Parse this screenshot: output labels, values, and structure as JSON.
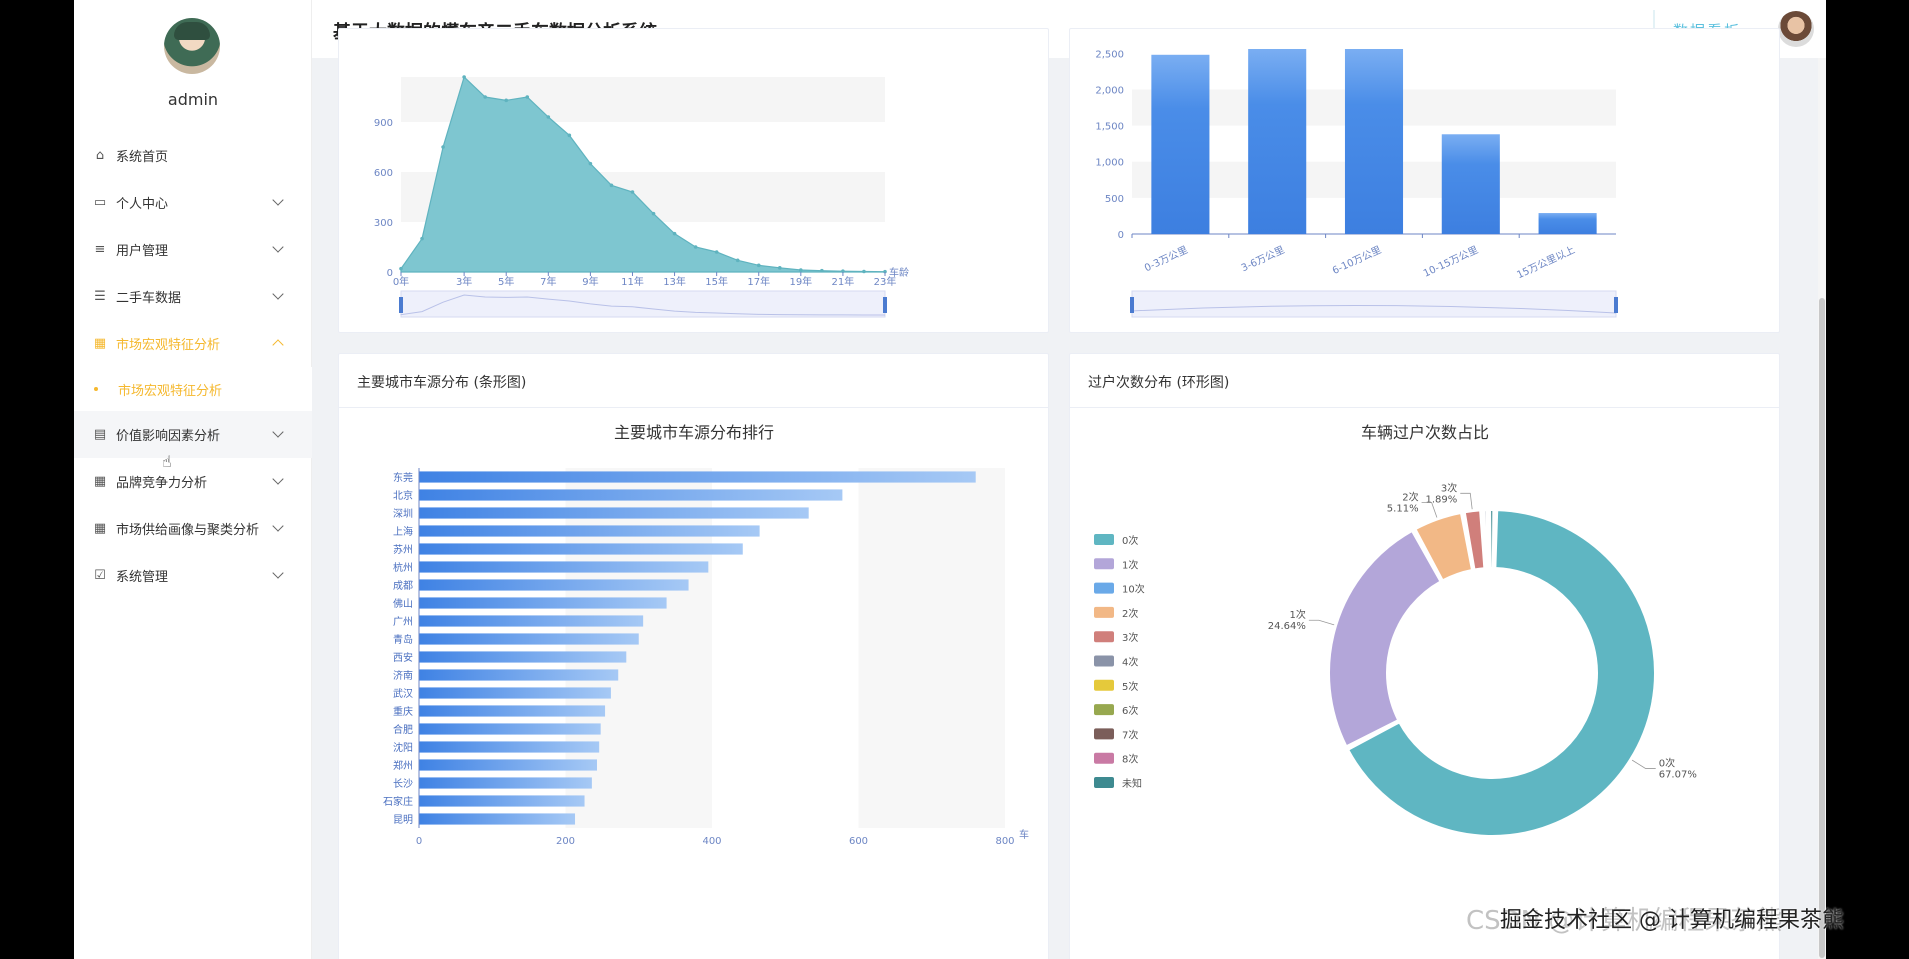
{
  "sidebar": {
    "username": "admin",
    "items": [
      {
        "label": "系统首页",
        "icon": "home-icon"
      },
      {
        "label": "个人中心",
        "icon": "wallet-icon"
      },
      {
        "label": "用户管理",
        "icon": "list-icon"
      },
      {
        "label": "二手车数据",
        "icon": "sliders-icon"
      },
      {
        "label": "市场宏观特征分析",
        "icon": "grid-icon"
      },
      {
        "label": "价值影响因素分析",
        "icon": "clipboard-icon"
      },
      {
        "label": "品牌竞争力分析",
        "icon": "grid-icon"
      },
      {
        "label": "市场供给画像与聚类分析",
        "icon": "grid-icon"
      },
      {
        "label": "系统管理",
        "icon": "clipboard-check-icon"
      }
    ],
    "submenu_active": "市场宏观特征分析"
  },
  "header": {
    "title": "基于大数据的懂车帝二手车数据分析系统",
    "dashboard_link": "数据看板",
    "user": "admin"
  },
  "cards": {
    "city_card_title": "主要城市车源分布 (条形图)",
    "transfer_card_title": "过户次数分布 (环形图)"
  },
  "watermark": "掘金技术社区 @ 计算机编程果茶熊",
  "watermark_bg": "CSDN @计算机编程果茶熊",
  "chart_data": [
    {
      "type": "area",
      "xlabel": "车龄",
      "x_ticks": [
        "0年",
        "3年",
        "5年",
        "7年",
        "9年",
        "11年",
        "13年",
        "15年",
        "17年",
        "19年",
        "21年",
        "23年"
      ],
      "y_ticks": [
        "0",
        "300",
        "600",
        "900"
      ],
      "ylim": [
        0,
        1170
      ],
      "x": [
        0,
        1,
        2,
        3,
        4,
        5,
        6,
        7,
        8,
        9,
        10,
        11,
        12,
        13,
        14,
        15,
        16,
        17,
        18,
        19,
        20,
        21,
        22,
        23
      ],
      "values": [
        20,
        200,
        750,
        1170,
        1050,
        1030,
        1050,
        930,
        820,
        650,
        520,
        480,
        350,
        230,
        150,
        120,
        70,
        40,
        25,
        12,
        8,
        5,
        3,
        2
      ],
      "color": "#7ec6d0"
    },
    {
      "type": "bar",
      "categories": [
        "0-3万公里",
        "3-6万公里",
        "6-10万公里",
        "10-15万公里",
        "15万公里以上"
      ],
      "values": [
        2480,
        2560,
        2560,
        1380,
        290
      ],
      "y_ticks": [
        "0",
        "500",
        "1,000",
        "1,500",
        "2,000",
        "2,500"
      ],
      "ylim": [
        0,
        2560
      ],
      "color": "#4a8de8"
    },
    {
      "type": "bar",
      "orientation": "horizontal",
      "title": "主要城市车源分布排行",
      "xlabel": "车",
      "categories": [
        "东莞",
        "北京",
        "深圳",
        "上海",
        "苏州",
        "杭州",
        "成都",
        "佛山",
        "广州",
        "青岛",
        "西安",
        "济南",
        "武汉",
        "重庆",
        "合肥",
        "沈阳",
        "郑州",
        "长沙",
        "石家庄",
        "昆明"
      ],
      "values": [
        760,
        578,
        532,
        465,
        442,
        395,
        368,
        338,
        306,
        300,
        283,
        272,
        262,
        254,
        248,
        246,
        243,
        236,
        226,
        213
      ],
      "x_ticks": [
        "0",
        "200",
        "400",
        "600",
        "800"
      ],
      "xlim": [
        0,
        800
      ],
      "color": "#4a8de8"
    },
    {
      "type": "pie",
      "title": "车辆过户次数占比",
      "legend": [
        "0次",
        "1次",
        "10次",
        "2次",
        "3次",
        "4次",
        "5次",
        "6次",
        "7次",
        "8次",
        "未知"
      ],
      "legend_colors": [
        "#5fb6c2",
        "#b3a6d9",
        "#6aa9e8",
        "#f2b886",
        "#d07f7b",
        "#8a93a8",
        "#e5c93b",
        "#97a84f",
        "#7b5e5a",
        "#c97aa4",
        "#3e8a90"
      ],
      "slices": [
        {
          "name": "0次",
          "value": 67.07,
          "color": "#5fb6c2",
          "label": "0次",
          "pct": "67.07%"
        },
        {
          "name": "1次",
          "value": 24.64,
          "color": "#b3a6d9",
          "label": "1次",
          "pct": "24.64%"
        },
        {
          "name": "2次",
          "value": 5.11,
          "color": "#f2b886",
          "label": "2次",
          "pct": "5.11%"
        },
        {
          "name": "3次",
          "value": 1.89,
          "color": "#d07f7b",
          "label": "3次",
          "pct": "1.89%"
        },
        {
          "name": "4次",
          "value": 0.6,
          "color": "#8a93a8"
        },
        {
          "name": "未知",
          "value": 0.69,
          "color": "#3e8a90"
        }
      ]
    }
  ]
}
